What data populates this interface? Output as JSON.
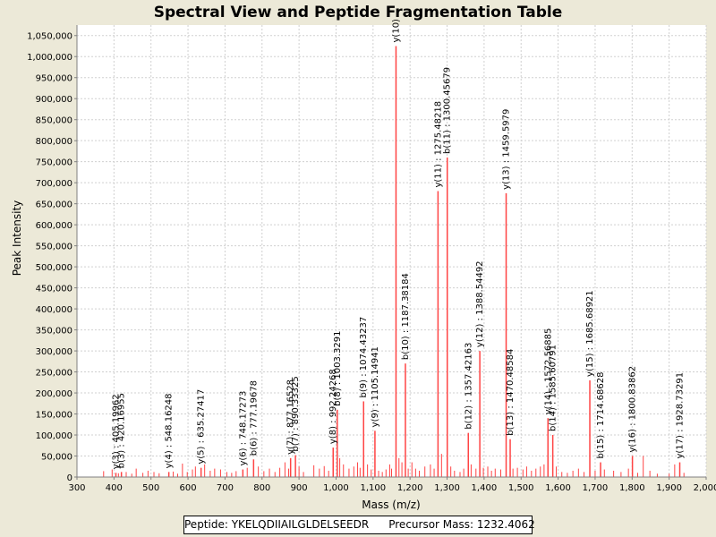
{
  "chart_data": {
    "type": "bar",
    "title": "Spectral View and Peptide Fragmentation Table",
    "xlabel": "Mass (m/z)",
    "ylabel": "Peak Intensity",
    "xlim": [
      300,
      2000
    ],
    "ylim": [
      0,
      1075000
    ],
    "x_ticks": [
      300,
      400,
      500,
      600,
      700,
      800,
      900,
      1000,
      1100,
      1200,
      1300,
      1400,
      1500,
      1600,
      1700,
      1800,
      1900,
      2000
    ],
    "y_ticks": [
      0,
      50000,
      100000,
      150000,
      200000,
      250000,
      300000,
      350000,
      400000,
      450000,
      500000,
      550000,
      600000,
      650000,
      700000,
      750000,
      800000,
      850000,
      900000,
      950000,
      1000000,
      1050000
    ],
    "x_tick_labels": [
      "300",
      "400",
      "500",
      "600",
      "700",
      "800",
      "900",
      "1,000",
      "1,100",
      "1,200",
      "1,300",
      "1,400",
      "1,500",
      "1,600",
      "1,700",
      "1,800",
      "1,900",
      "2,000"
    ],
    "y_tick_labels": [
      "0",
      "50,000",
      "100,000",
      "150,000",
      "200,000",
      "250,000",
      "300,000",
      "350,000",
      "400,000",
      "450,000",
      "500,000",
      "550,000",
      "600,000",
      "650,000",
      "700,000",
      "750,000",
      "800,000",
      "850,000",
      "900,000",
      "950,000",
      "1,000,000",
      "1,050,000"
    ],
    "series_color": "#ff4444",
    "grid": true,
    "annotated_peaks": [
      {
        "mz": 405.2,
        "intensity": 10000,
        "label": "y(3) : 405.19962"
      },
      {
        "mz": 420.1,
        "intensity": 12000,
        "label": "b(3) : 420.16955"
      },
      {
        "mz": 548.2,
        "intensity": 12000,
        "label": "y(4) : 548.16248"
      },
      {
        "mz": 635.3,
        "intensity": 22000,
        "label": "y(5) : 635.27417"
      },
      {
        "mz": 748.2,
        "intensity": 18000,
        "label": "y(6) : 748.17273"
      },
      {
        "mz": 777.2,
        "intensity": 42000,
        "label": "b(6) : 777.19678"
      },
      {
        "mz": 877.2,
        "intensity": 45000,
        "label": "y(7) : 877.16528"
      },
      {
        "mz": 890.3,
        "intensity": 52000,
        "label": "b(7) : 890.33325"
      },
      {
        "mz": 992.2,
        "intensity": 70000,
        "label": "y(8) : 992.24268"
      },
      {
        "mz": 1003.3,
        "intensity": 160000,
        "label": "b(8) : 1003.3291"
      },
      {
        "mz": 1074.4,
        "intensity": 180000,
        "label": "b(9) : 1074.43237"
      },
      {
        "mz": 1105.1,
        "intensity": 110000,
        "label": "y(9) : 1105.14941"
      },
      {
        "mz": 1162.0,
        "intensity": 1025000,
        "label": "y(10)"
      },
      {
        "mz": 1187.4,
        "intensity": 270000,
        "label": "b(10) : 1187.38184"
      },
      {
        "mz": 1275.5,
        "intensity": 680000,
        "label": "y(11) : 1275.48218"
      },
      {
        "mz": 1300.5,
        "intensity": 760000,
        "label": "b(11) : 1300.45679"
      },
      {
        "mz": 1357.4,
        "intensity": 105000,
        "label": "b(12) : 1357.42163"
      },
      {
        "mz": 1388.5,
        "intensity": 300000,
        "label": "y(12) : 1388.54492"
      },
      {
        "mz": 1459.6,
        "intensity": 675000,
        "label": "y(13) : 1459.5979"
      },
      {
        "mz": 1470.5,
        "intensity": 90000,
        "label": "b(13) : 1470.48584"
      },
      {
        "mz": 1572.6,
        "intensity": 140000,
        "label": "y(14) : 1572.56885"
      },
      {
        "mz": 1585.6,
        "intensity": 100000,
        "label": "b(14) : 1585.60791"
      },
      {
        "mz": 1685.7,
        "intensity": 230000,
        "label": "y(15) : 1685.68921"
      },
      {
        "mz": 1714.7,
        "intensity": 35000,
        "label": "b(15) : 1714.68628"
      },
      {
        "mz": 1800.8,
        "intensity": 50000,
        "label": "y(16) : 1800.83862"
      },
      {
        "mz": 1928.7,
        "intensity": 35000,
        "label": "y(17) : 1928.73291"
      }
    ],
    "background_peaks": [
      {
        "mz": 372,
        "intensity": 14000
      },
      {
        "mz": 395,
        "intensity": 18000
      },
      {
        "mz": 412,
        "intensity": 9000
      },
      {
        "mz": 433,
        "intensity": 12000
      },
      {
        "mz": 448,
        "intensity": 8000
      },
      {
        "mz": 460,
        "intensity": 20000
      },
      {
        "mz": 478,
        "intensity": 10000
      },
      {
        "mz": 492,
        "intensity": 15000
      },
      {
        "mz": 508,
        "intensity": 12000
      },
      {
        "mz": 522,
        "intensity": 9000
      },
      {
        "mz": 560,
        "intensity": 13000
      },
      {
        "mz": 572,
        "intensity": 8000
      },
      {
        "mz": 585,
        "intensity": 32000
      },
      {
        "mz": 598,
        "intensity": 12000
      },
      {
        "mz": 612,
        "intensity": 18000
      },
      {
        "mz": 620,
        "intensity": 25000
      },
      {
        "mz": 645,
        "intensity": 30000
      },
      {
        "mz": 660,
        "intensity": 15000
      },
      {
        "mz": 672,
        "intensity": 20000
      },
      {
        "mz": 688,
        "intensity": 18000
      },
      {
        "mz": 705,
        "intensity": 12000
      },
      {
        "mz": 718,
        "intensity": 10000
      },
      {
        "mz": 730,
        "intensity": 14000
      },
      {
        "mz": 760,
        "intensity": 22000
      },
      {
        "mz": 790,
        "intensity": 25000
      },
      {
        "mz": 805,
        "intensity": 14000
      },
      {
        "mz": 820,
        "intensity": 20000
      },
      {
        "mz": 835,
        "intensity": 12000
      },
      {
        "mz": 848,
        "intensity": 22000
      },
      {
        "mz": 862,
        "intensity": 35000
      },
      {
        "mz": 872,
        "intensity": 20000
      },
      {
        "mz": 900,
        "intensity": 25000
      },
      {
        "mz": 912,
        "intensity": 12000
      },
      {
        "mz": 940,
        "intensity": 28000
      },
      {
        "mz": 955,
        "intensity": 20000
      },
      {
        "mz": 968,
        "intensity": 26000
      },
      {
        "mz": 980,
        "intensity": 15000
      },
      {
        "mz": 1010,
        "intensity": 45000
      },
      {
        "mz": 1020,
        "intensity": 30000
      },
      {
        "mz": 1035,
        "intensity": 20000
      },
      {
        "mz": 1048,
        "intensity": 25000
      },
      {
        "mz": 1058,
        "intensity": 35000
      },
      {
        "mz": 1065,
        "intensity": 22000
      },
      {
        "mz": 1085,
        "intensity": 30000
      },
      {
        "mz": 1095,
        "intensity": 18000
      },
      {
        "mz": 1115,
        "intensity": 15000
      },
      {
        "mz": 1125,
        "intensity": 12000
      },
      {
        "mz": 1135,
        "intensity": 18000
      },
      {
        "mz": 1145,
        "intensity": 30000
      },
      {
        "mz": 1150,
        "intensity": 20000
      },
      {
        "mz": 1170,
        "intensity": 45000
      },
      {
        "mz": 1178,
        "intensity": 35000
      },
      {
        "mz": 1195,
        "intensity": 20000
      },
      {
        "mz": 1205,
        "intensity": 35000
      },
      {
        "mz": 1215,
        "intensity": 20000
      },
      {
        "mz": 1225,
        "intensity": 15000
      },
      {
        "mz": 1240,
        "intensity": 25000
      },
      {
        "mz": 1255,
        "intensity": 30000
      },
      {
        "mz": 1265,
        "intensity": 20000
      },
      {
        "mz": 1285,
        "intensity": 55000
      },
      {
        "mz": 1310,
        "intensity": 25000
      },
      {
        "mz": 1320,
        "intensity": 15000
      },
      {
        "mz": 1335,
        "intensity": 12000
      },
      {
        "mz": 1345,
        "intensity": 20000
      },
      {
        "mz": 1365,
        "intensity": 30000
      },
      {
        "mz": 1378,
        "intensity": 20000
      },
      {
        "mz": 1398,
        "intensity": 22000
      },
      {
        "mz": 1410,
        "intensity": 25000
      },
      {
        "mz": 1420,
        "intensity": 15000
      },
      {
        "mz": 1430,
        "intensity": 20000
      },
      {
        "mz": 1445,
        "intensity": 18000
      },
      {
        "mz": 1478,
        "intensity": 20000
      },
      {
        "mz": 1490,
        "intensity": 22000
      },
      {
        "mz": 1505,
        "intensity": 18000
      },
      {
        "mz": 1515,
        "intensity": 25000
      },
      {
        "mz": 1528,
        "intensity": 15000
      },
      {
        "mz": 1540,
        "intensity": 20000
      },
      {
        "mz": 1552,
        "intensity": 25000
      },
      {
        "mz": 1562,
        "intensity": 30000
      },
      {
        "mz": 1595,
        "intensity": 25000
      },
      {
        "mz": 1610,
        "intensity": 12000
      },
      {
        "mz": 1625,
        "intensity": 10000
      },
      {
        "mz": 1640,
        "intensity": 15000
      },
      {
        "mz": 1655,
        "intensity": 20000
      },
      {
        "mz": 1670,
        "intensity": 12000
      },
      {
        "mz": 1700,
        "intensity": 15000
      },
      {
        "mz": 1725,
        "intensity": 18000
      },
      {
        "mz": 1750,
        "intensity": 15000
      },
      {
        "mz": 1770,
        "intensity": 12000
      },
      {
        "mz": 1790,
        "intensity": 20000
      },
      {
        "mz": 1815,
        "intensity": 10000
      },
      {
        "mz": 1830,
        "intensity": 50000
      },
      {
        "mz": 1848,
        "intensity": 15000
      },
      {
        "mz": 1868,
        "intensity": 8000
      },
      {
        "mz": 1900,
        "intensity": 8000
      },
      {
        "mz": 1915,
        "intensity": 30000
      },
      {
        "mz": 1940,
        "intensity": 10000
      }
    ]
  },
  "footer": {
    "peptide_label": "Peptide: YKELQDIIAILGLDELSEEDR",
    "precursor_label": "Precursor Mass: 1232.4062"
  }
}
